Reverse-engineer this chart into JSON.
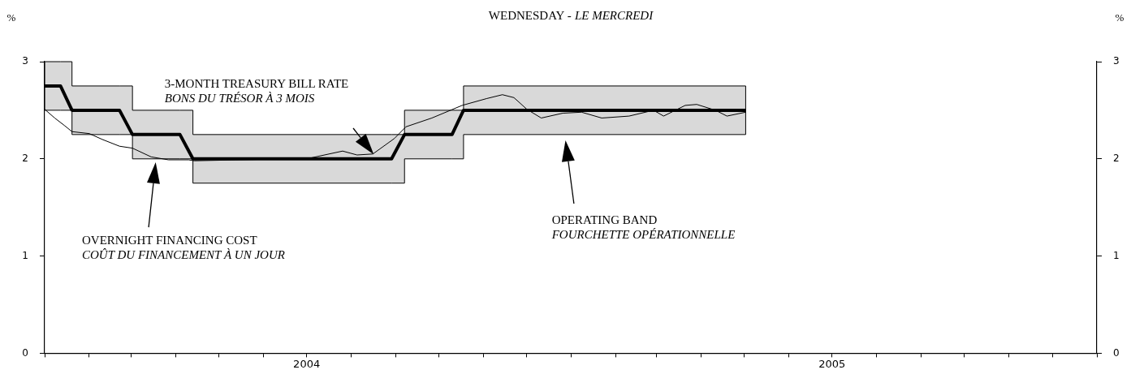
{
  "chart_data": {
    "type": "line",
    "title": "WEDNESDAY - LE MERCREDI",
    "ylabel": "%",
    "y2label": "%",
    "xlim": [
      "2004-01-01",
      "2006-01-01"
    ],
    "xticks": [
      {
        "value": "2004-01",
        "label": null
      },
      {
        "value": "2004-02",
        "label": null
      },
      {
        "value": "2004-03",
        "label": null
      },
      {
        "value": "2004-04",
        "label": null
      },
      {
        "value": "2004-05",
        "label": null
      },
      {
        "value": "2004-06",
        "label": null
      },
      {
        "value": "2004-07",
        "label": "2004"
      },
      {
        "value": "2004-08",
        "label": null
      },
      {
        "value": "2004-09",
        "label": null
      },
      {
        "value": "2004-10",
        "label": null
      },
      {
        "value": "2004-11",
        "label": null
      },
      {
        "value": "2004-12",
        "label": null
      },
      {
        "value": "2005-01",
        "label": null
      },
      {
        "value": "2005-02",
        "label": null
      },
      {
        "value": "2005-03",
        "label": null
      },
      {
        "value": "2005-04",
        "label": null
      },
      {
        "value": "2005-05",
        "label": null
      },
      {
        "value": "2005-06",
        "label": null
      },
      {
        "value": "2005-07",
        "label": "2005"
      },
      {
        "value": "2005-08",
        "label": null
      },
      {
        "value": "2005-09",
        "label": null
      },
      {
        "value": "2005-10",
        "label": null
      },
      {
        "value": "2005-11",
        "label": null
      },
      {
        "value": "2005-12",
        "label": null
      },
      {
        "value": "2006-01",
        "label": null
      }
    ],
    "ylim": [
      0,
      3
    ],
    "yticks": [
      0,
      1,
      2,
      3
    ],
    "y2lim": [
      0,
      3
    ],
    "y2ticks": [
      0,
      1,
      2,
      3
    ],
    "series": [
      {
        "color": "#000000",
        "x": [
          "2004-01-01",
          "2004-01-12",
          "2004-01-20",
          "2004-01-20",
          "2004-02-22",
          "2004-03-02",
          "2004-03-02",
          "2004-04-04",
          "2004-04-13",
          "2004-04-13",
          "2004-08-29",
          "2004-09-07",
          "2004-09-07",
          "2004-10-10",
          "2004-10-18",
          "2004-10-18",
          "2005-05-02"
        ],
        "values": [
          2.75,
          2.75,
          2.5,
          2.5,
          2.5,
          2.25,
          2.25,
          2.25,
          2.0,
          2.0,
          2.0,
          2.25,
          2.25,
          2.25,
          2.5,
          2.5,
          2.5
        ],
        "lower": [
          2.5,
          2.5,
          2.5,
          2.25,
          2.25,
          2.25,
          2.0,
          2.0,
          2.0,
          1.75,
          1.75,
          1.75,
          2.0,
          2.0,
          2.0,
          2.25,
          2.25
        ],
        "upper": [
          3.0,
          3.0,
          3.0,
          2.75,
          2.75,
          2.75,
          2.5,
          2.5,
          2.5,
          2.25,
          2.25,
          2.25,
          2.5,
          2.5,
          2.5,
          2.75,
          2.75
        ]
      },
      {
        "color": "#000000",
        "x": [
          "2004-01-01",
          "2004-01-08",
          "2004-01-15",
          "2004-01-20",
          "2004-02-01",
          "2004-02-10",
          "2004-02-22",
          "2004-03-02",
          "2004-03-15",
          "2004-03-27",
          "2004-04-10",
          "2004-04-14",
          "2004-06-15",
          "2004-07-04",
          "2004-07-26",
          "2004-08-05",
          "2004-08-16",
          "2004-08-31",
          "2004-09-08",
          "2004-09-26",
          "2004-10-17",
          "2004-11-03",
          "2004-11-14",
          "2004-11-22",
          "2004-12-01",
          "2004-12-11",
          "2004-12-26",
          "2005-01-08",
          "2005-01-22",
          "2005-02-10",
          "2005-02-27",
          "2005-03-06",
          "2005-03-21",
          "2005-03-29",
          "2005-04-11",
          "2005-04-19",
          "2005-05-02"
        ],
        "values": [
          2.51,
          2.42,
          2.34,
          2.28,
          2.26,
          2.2,
          2.13,
          2.11,
          2.02,
          1.99,
          1.99,
          1.98,
          2.0,
          2.01,
          2.08,
          2.04,
          2.05,
          2.21,
          2.33,
          2.42,
          2.55,
          2.62,
          2.66,
          2.63,
          2.51,
          2.42,
          2.47,
          2.48,
          2.42,
          2.44,
          2.5,
          2.44,
          2.55,
          2.56,
          2.5,
          2.44,
          2.48
        ]
      }
    ],
    "annotations": [
      "3-MONTH TREASURY BILL RATE\nBONS DU TRÉSOR À 3 MOIS",
      "OVERNIGHT FINANCING COST\nCOÛT DU FINANCEMENT À UN JOUR",
      "OPERATING BAND\nFOURCHETTE OPÉRATIONNELLE"
    ]
  }
}
